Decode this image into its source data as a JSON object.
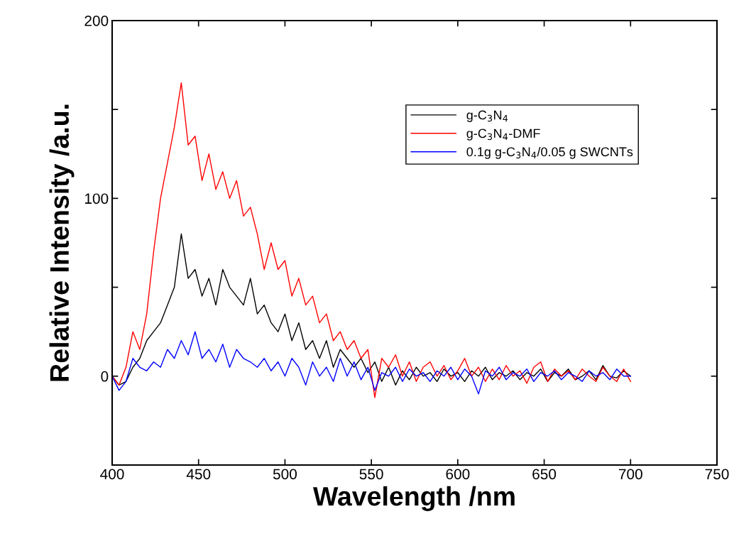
{
  "chart_data": {
    "type": "line",
    "xlabel": "Wavelength /nm",
    "ylabel": "Relative Intensity /a.u.",
    "x": [
      400,
      404,
      408,
      412,
      416,
      420,
      424,
      428,
      432,
      436,
      440,
      444,
      448,
      452,
      456,
      460,
      464,
      468,
      472,
      476,
      480,
      484,
      488,
      492,
      496,
      500,
      504,
      508,
      512,
      516,
      520,
      524,
      528,
      532,
      536,
      540,
      544,
      548,
      552,
      556,
      560,
      564,
      568,
      572,
      576,
      580,
      584,
      588,
      592,
      596,
      600,
      604,
      608,
      612,
      616,
      620,
      624,
      628,
      632,
      636,
      640,
      644,
      648,
      652,
      656,
      660,
      664,
      668,
      672,
      676,
      680,
      684,
      688,
      692,
      696,
      700
    ],
    "series": [
      {
        "name": "g-C$_{3}$N$_{4}$",
        "color": "#000000",
        "values": [
          0,
          -5,
          -3,
          5,
          10,
          20,
          25,
          30,
          40,
          50,
          80,
          55,
          60,
          45,
          55,
          40,
          60,
          50,
          45,
          40,
          55,
          35,
          40,
          30,
          25,
          35,
          20,
          30,
          15,
          20,
          10,
          20,
          5,
          15,
          10,
          5,
          10,
          2,
          8,
          -3,
          5,
          -5,
          3,
          -2,
          5,
          0,
          2,
          -3,
          4,
          0,
          2,
          -3,
          3,
          0,
          5,
          -2,
          2,
          0,
          3,
          -2,
          2,
          0,
          4,
          -3,
          2,
          0,
          4,
          -2,
          0,
          3,
          -2,
          6,
          0,
          -1,
          3,
          0
        ]
      },
      {
        "name": "g-C$_{3}$N$_{4}$-DMF",
        "color": "#ff0000",
        "values": [
          0,
          -5,
          5,
          25,
          15,
          35,
          70,
          100,
          120,
          140,
          165,
          130,
          135,
          110,
          125,
          105,
          115,
          100,
          110,
          90,
          95,
          80,
          60,
          75,
          60,
          65,
          45,
          55,
          40,
          45,
          30,
          35,
          20,
          25,
          15,
          20,
          10,
          15,
          -12,
          10,
          5,
          12,
          0,
          8,
          -3,
          5,
          8,
          0,
          6,
          -2,
          3,
          10,
          0,
          5,
          -3,
          4,
          -2,
          6,
          0,
          3,
          -4,
          5,
          8,
          -3,
          4,
          0,
          3,
          -2,
          4,
          0,
          -3,
          5,
          0,
          -3,
          4,
          -3
        ]
      },
      {
        "name": "0.1g g-C$_{3}$N$_{4}$/0.05 g SWCNTs",
        "color": "#0000ff",
        "values": [
          0,
          -8,
          -3,
          10,
          5,
          3,
          8,
          5,
          15,
          10,
          20,
          12,
          25,
          10,
          15,
          8,
          18,
          5,
          15,
          10,
          8,
          5,
          10,
          3,
          8,
          0,
          10,
          5,
          -5,
          8,
          0,
          5,
          -3,
          10,
          0,
          8,
          -2,
          5,
          -8,
          2,
          0,
          5,
          -3,
          4,
          0,
          2,
          -3,
          3,
          0,
          5,
          -2,
          4,
          0,
          -10,
          3,
          0,
          5,
          -2,
          2,
          0,
          4,
          -3,
          2,
          0,
          3,
          -2,
          2,
          0,
          -3,
          3,
          0,
          2,
          -2,
          4,
          0,
          0
        ]
      }
    ],
    "xlim": [
      400,
      750
    ],
    "xticks": [
      400,
      450,
      500,
      550,
      600,
      650,
      700,
      750
    ],
    "ylim": [
      -50,
      200
    ],
    "yticks": [
      {
        "value": -50,
        "label": null
      },
      0,
      {
        "value": 50,
        "label": null
      },
      100,
      {
        "value": 150,
        "label": null
      },
      200
    ],
    "legend": "top right",
    "grid": false,
    "marker": "none",
    "line_style": "solid"
  }
}
